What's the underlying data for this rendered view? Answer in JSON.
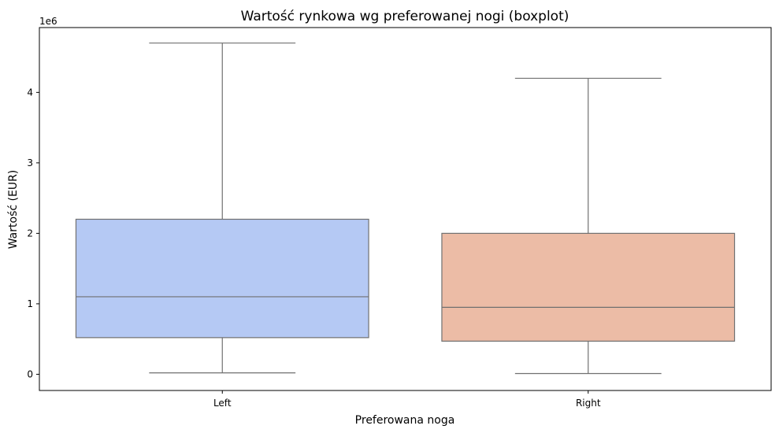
{
  "chart_data": {
    "type": "boxplot",
    "title": "Wartość rynkowa wg preferowanej nogi (boxplot)",
    "xlabel": "Preferowana noga",
    "ylabel": "Wartość (EUR)",
    "y_offset_label": "1e6",
    "yticks": [
      0,
      1,
      2,
      3,
      4
    ],
    "ytick_labels": [
      "0",
      "1",
      "2",
      "3",
      "4"
    ],
    "ylim": [
      -0.23,
      4.92
    ],
    "grid": false,
    "categories": [
      "Left",
      "Right"
    ],
    "boxes": [
      {
        "category": "Left",
        "whisker_low": 0.02,
        "q1": 0.52,
        "median": 1.1,
        "q3": 2.2,
        "whisker_high": 4.7,
        "color": "#b5c9f4"
      },
      {
        "category": "Right",
        "whisker_low": 0.01,
        "q1": 0.47,
        "median": 0.95,
        "q3": 2.0,
        "whisker_high": 4.2,
        "color": "#ecbca6"
      }
    ],
    "line_color": "#707070"
  }
}
